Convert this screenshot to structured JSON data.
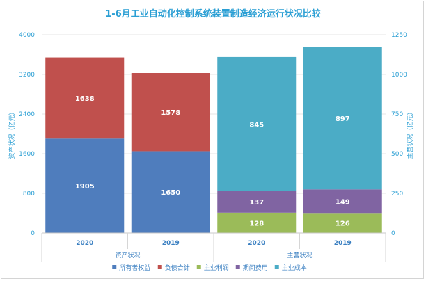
{
  "chart_data": {
    "type": "bar",
    "stacked": true,
    "title": "1-6月工业自动化控制系统装置制造经济运行状况比较",
    "left_axis": {
      "label": "资产状况（亿元）",
      "ylim": [
        0,
        4000
      ],
      "ticks": [
        "0",
        "800",
        "1600",
        "2400",
        "3200",
        "4000"
      ]
    },
    "right_axis": {
      "label": "主营状况（亿元）",
      "ylim": [
        0,
        1250
      ],
      "ticks": [
        "0",
        "250",
        "500",
        "750",
        "1000",
        "1250"
      ]
    },
    "groups": [
      {
        "label": "资产状况",
        "axis": "left",
        "categories": [
          "2020",
          "2019"
        ],
        "series": [
          {
            "name": "所有者权益",
            "color": "#4f7dbd",
            "values": [
              1905,
              1650
            ]
          },
          {
            "name": "负债合计",
            "color": "#c0504d",
            "values": [
              1638,
              1578
            ]
          }
        ]
      },
      {
        "label": "主营状况",
        "axis": "right",
        "categories": [
          "2020",
          "2019"
        ],
        "series": [
          {
            "name": "主业利润",
            "color": "#9bbb59",
            "values": [
              128,
              126
            ]
          },
          {
            "name": "期间费用",
            "color": "#8064a2",
            "values": [
              137,
              149
            ]
          },
          {
            "name": "主业成本",
            "color": "#4bacc6",
            "values": [
              845,
              897
            ]
          }
        ]
      }
    ],
    "legend": {
      "position": "bottom",
      "items": [
        {
          "name": "所有者权益",
          "color": "#4f7dbd"
        },
        {
          "name": "负债合计",
          "color": "#c0504d"
        },
        {
          "name": "主业利润",
          "color": "#9bbb59"
        },
        {
          "name": "期间费用",
          "color": "#8064a2"
        },
        {
          "name": "主业成本",
          "color": "#4bacc6"
        }
      ]
    },
    "grid": true
  }
}
